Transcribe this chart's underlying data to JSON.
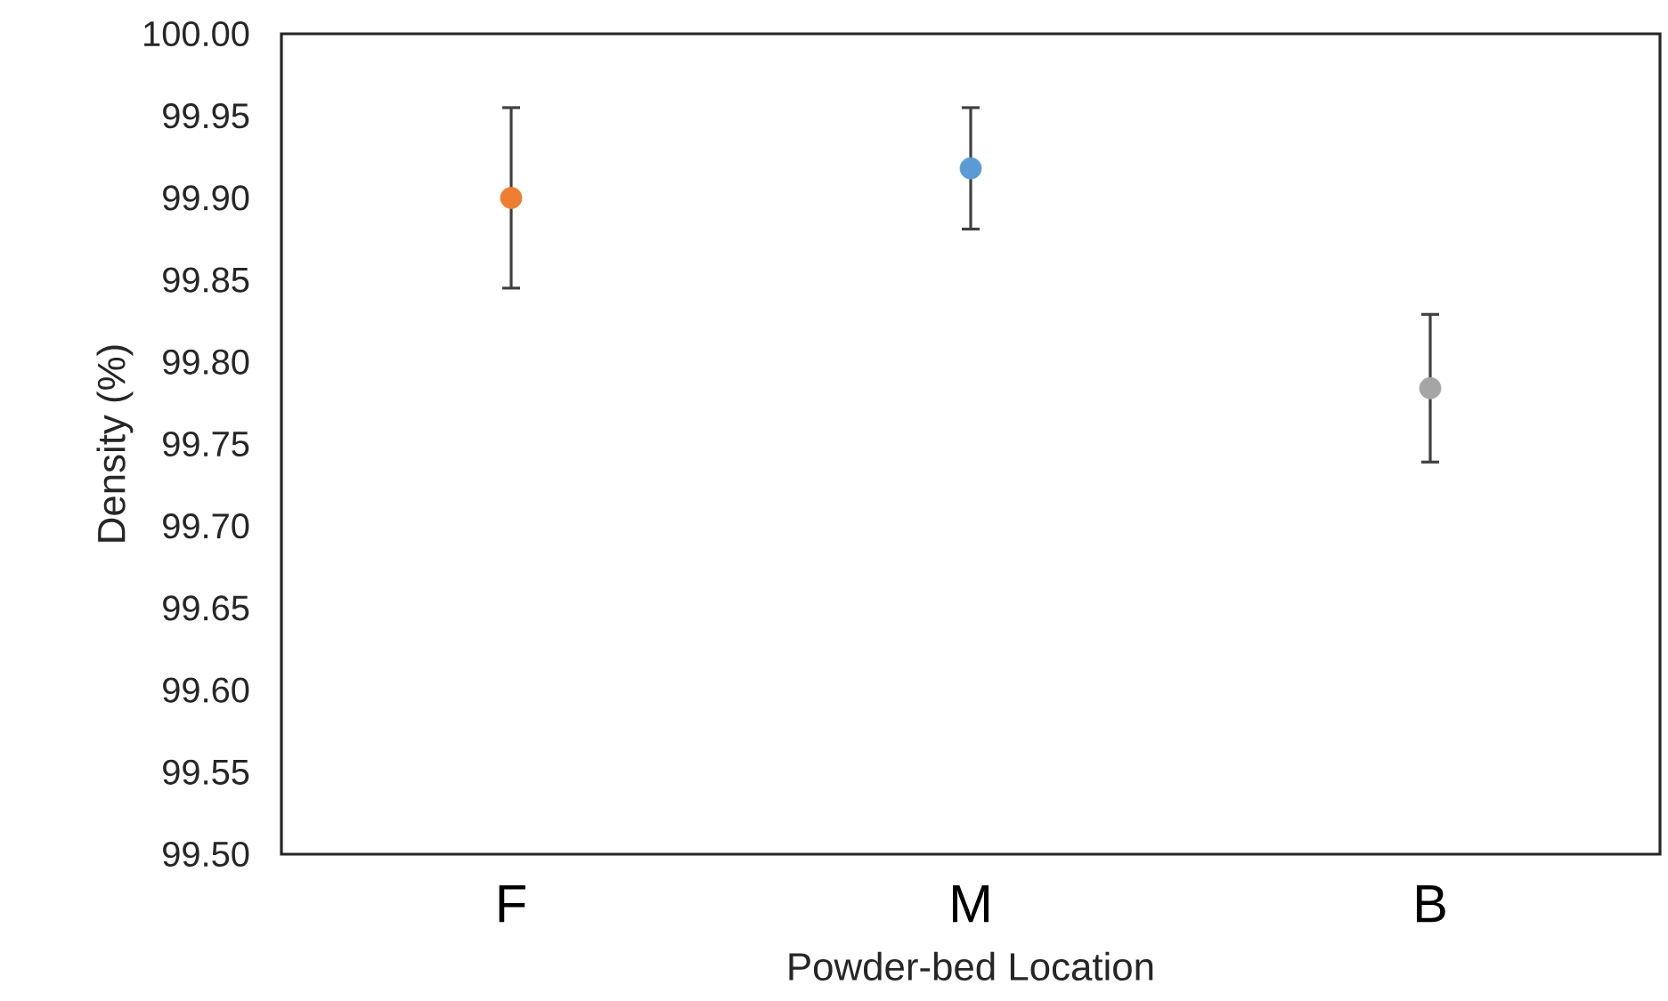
{
  "chart_data": {
    "type": "scatter",
    "xlabel": "Powder-bed Location",
    "ylabel": "Density (%)",
    "categories": [
      "F",
      "M",
      "B"
    ],
    "values": [
      99.9,
      99.918,
      99.784
    ],
    "colors": [
      "#ed7d31",
      "#5b9bd5",
      "#a5a5a5"
    ],
    "errors": [
      0.055,
      0.037,
      0.045
    ],
    "ylim": [
      99.5,
      100.0
    ],
    "yticks": [
      {
        "value": 99.5,
        "label": "99.50"
      },
      {
        "value": 99.55,
        "label": "99.55"
      },
      {
        "value": 99.6,
        "label": "99.60"
      },
      {
        "value": 99.65,
        "label": "99.65"
      },
      {
        "value": 99.7,
        "label": "99.70"
      },
      {
        "value": 99.75,
        "label": "99.75"
      },
      {
        "value": 99.8,
        "label": "99.80"
      },
      {
        "value": 99.85,
        "label": "99.85"
      },
      {
        "value": 99.9,
        "label": "99.90"
      },
      {
        "value": 99.95,
        "label": "99.95"
      },
      {
        "value": 100.0,
        "label": "100.00"
      }
    ]
  }
}
